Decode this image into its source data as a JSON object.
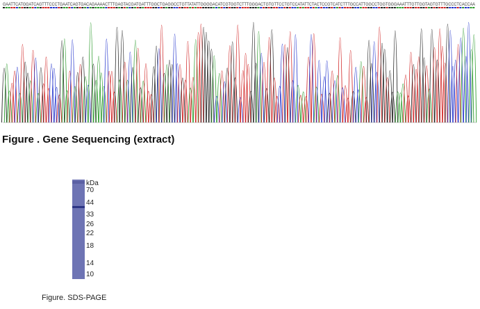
{
  "sequence": "GAATTCATGGATCAGTTTCCCTGAATCAGTGACAGAAAACTTTGAGTACGATGATTTGGCTGAGGCCTGTTATATTGGGGACATCGTGGTCTTTGGGACTGTGTTCCTGTCCATATTCTACTCCGTCATCTTTGCCATTGGCCTGGTGGGAAATTTGTTGGTAGTGTTTGCCCTCACCAA",
  "sequencing_caption": "Figure . Gene Sequencing (extract)",
  "gel": {
    "unit": "kDa",
    "markers": [
      "70",
      "44",
      "33",
      "26",
      "22",
      "18",
      "14",
      "10"
    ]
  },
  "gel_caption": "Figure. SDS-PAGE"
}
